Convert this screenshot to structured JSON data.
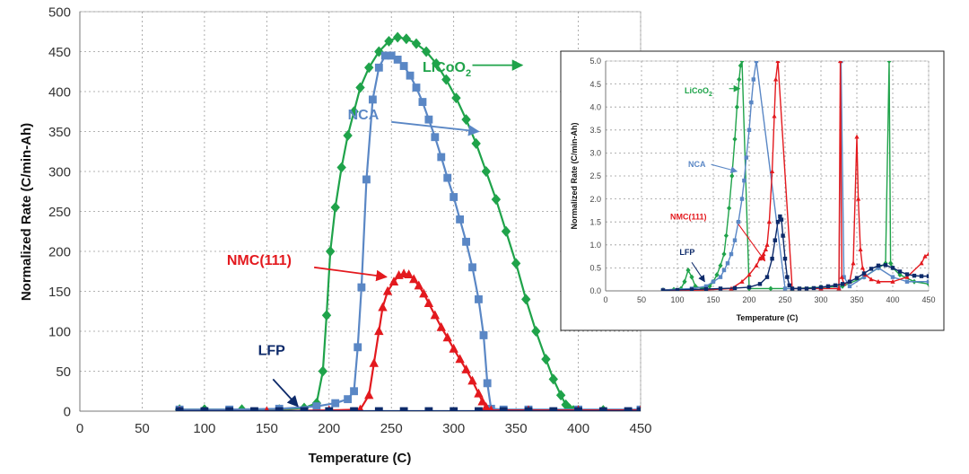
{
  "chart_data": [
    {
      "id": "main",
      "type": "scatter",
      "title": "",
      "xlabel": "Temperature (C)",
      "ylabel": "Normalized Rate (C/min-Ah)",
      "xlim": [
        0,
        450
      ],
      "ylim": [
        0,
        500
      ],
      "xticks": [
        "0",
        "50",
        "100",
        "150",
        "200",
        "250",
        "300",
        "350",
        "400",
        "450"
      ],
      "yticks": [
        "0",
        "50",
        "100",
        "150",
        "200",
        "250",
        "300",
        "350",
        "400",
        "450",
        "500"
      ],
      "grid": true,
      "series": [
        {
          "name": "LiCoO2",
          "label_base": "LiCoO",
          "label_sub": "2",
          "color": "#1fa34a",
          "marker": "diamond",
          "x": [
            80,
            100,
            130,
            160,
            180,
            190,
            195,
            198,
            201,
            205,
            210,
            215,
            220,
            225,
            232,
            240,
            248,
            255,
            262,
            270,
            278,
            286,
            294,
            302,
            310,
            318,
            326,
            334,
            342,
            350,
            358,
            366,
            374,
            380,
            386,
            390,
            393,
            396,
            400,
            420,
            450
          ],
          "y": [
            2,
            2,
            2,
            2,
            4,
            10,
            50,
            120,
            200,
            255,
            305,
            345,
            375,
            405,
            430,
            450,
            463,
            468,
            466,
            460,
            450,
            435,
            415,
            392,
            365,
            335,
            300,
            265,
            225,
            185,
            140,
            100,
            65,
            40,
            20,
            8,
            3,
            1,
            1,
            1,
            1
          ]
        },
        {
          "name": "NCA",
          "color": "#5a87c5",
          "marker": "square",
          "x": [
            80,
            120,
            160,
            190,
            205,
            215,
            220,
            223,
            226,
            230,
            235,
            240,
            245,
            250,
            255,
            260,
            265,
            270,
            275,
            280,
            285,
            290,
            295,
            300,
            305,
            310,
            315,
            320,
            324,
            327,
            330,
            340,
            360,
            400,
            450
          ],
          "y": [
            2,
            2,
            3,
            6,
            10,
            15,
            25,
            80,
            155,
            290,
            390,
            430,
            445,
            445,
            440,
            432,
            420,
            405,
            387,
            365,
            343,
            318,
            292,
            268,
            240,
            212,
            180,
            140,
            95,
            35,
            3,
            2,
            2,
            2,
            2
          ]
        },
        {
          "name": "NMC(111)",
          "color": "#e3191e",
          "marker": "triangle",
          "x": [
            80,
            150,
            200,
            225,
            232,
            236,
            240,
            243,
            247,
            252,
            256,
            260,
            264,
            268,
            272,
            276,
            280,
            285,
            290,
            295,
            300,
            305,
            310,
            315,
            320,
            323,
            326,
            330,
            360,
            400,
            450
          ],
          "y": [
            0,
            0,
            1,
            2,
            20,
            60,
            100,
            130,
            150,
            162,
            170,
            172,
            171,
            165,
            157,
            147,
            135,
            120,
            105,
            92,
            78,
            65,
            52,
            38,
            22,
            12,
            5,
            1,
            1,
            1,
            1
          ]
        },
        {
          "name": "LFP",
          "color": "#0d2a6a",
          "marker": "square",
          "x": [
            80,
            100,
            120,
            140,
            160,
            180,
            200,
            220,
            240,
            260,
            280,
            300,
            320,
            340,
            360,
            380,
            400,
            420,
            440,
            450
          ],
          "y": [
            0,
            0,
            0,
            0,
            0,
            0,
            0,
            0,
            0,
            0,
            0,
            0,
            0,
            0,
            0,
            0,
            0,
            0,
            0,
            0
          ]
        }
      ],
      "annotations": [
        {
          "series": "LiCoO2",
          "text_base": "LiCoO",
          "text_sub": "2",
          "color": "#1fa34a",
          "tx": 275,
          "ty": 425,
          "ax": 315,
          "ay": 433,
          "bx": 355,
          "by": 433
        },
        {
          "series": "NCA",
          "text": "NCA",
          "color": "#5a87c5",
          "tx": 215,
          "ty": 365,
          "ax": 250,
          "ay": 362,
          "bx": 320,
          "by": 350
        },
        {
          "series": "NMC(111)",
          "text": "NMC(111)",
          "color": "#e3191e",
          "tx": 118,
          "ty": 183,
          "ax": 188,
          "ay": 180,
          "bx": 246,
          "by": 168
        },
        {
          "series": "LFP",
          "text": "LFP",
          "color": "#0d2a6a",
          "tx": 143,
          "ty": 70,
          "ax": 155,
          "ay": 40,
          "bx": 175,
          "by": 6
        }
      ]
    },
    {
      "id": "inset",
      "type": "scatter",
      "title": "",
      "xlabel": "Temperature (C)",
      "ylabel": "Normalized Rate (C/min-Ah)",
      "xlim": [
        0,
        450
      ],
      "ylim": [
        0,
        5
      ],
      "xticks": [
        "0",
        "50",
        "100",
        "150",
        "200",
        "250",
        "300",
        "350",
        "400",
        "450"
      ],
      "yticks": [
        "0.0",
        "0.5",
        "1.0",
        "1.5",
        "2.0",
        "2.5",
        "3.0",
        "3.5",
        "4.0",
        "4.5",
        "5.0"
      ],
      "grid": true,
      "series": [
        {
          "name": "LiCoO2",
          "label_base": "LiCoO",
          "label_sub": "2",
          "color": "#1fa34a",
          "marker": "diamond",
          "x": [
            80,
            95,
            105,
            110,
            115,
            120,
            125,
            135,
            145,
            150,
            155,
            160,
            165,
            168,
            172,
            176,
            180,
            183,
            186,
            188,
            190,
            200,
            230,
            260,
            300,
            330,
            360,
            380,
            390,
            395,
            397,
            400,
            410,
            430,
            450
          ],
          "y": [
            0.02,
            0.03,
            0.05,
            0.2,
            0.45,
            0.3,
            0.1,
            0.05,
            0.1,
            0.2,
            0.35,
            0.55,
            0.8,
            1.2,
            1.8,
            2.5,
            3.3,
            4.0,
            4.6,
            4.9,
            5.0,
            0.05,
            0.05,
            0.05,
            0.08,
            0.1,
            0.3,
            0.5,
            0.6,
            5.0,
            0.6,
            0.5,
            0.35,
            0.2,
            0.15
          ]
        },
        {
          "name": "NCA",
          "color": "#5a87c5",
          "marker": "square",
          "x": [
            80,
            120,
            140,
            150,
            160,
            165,
            170,
            175,
            180,
            185,
            190,
            193,
            196,
            200,
            203,
            206,
            210,
            250,
            300,
            325,
            328,
            332,
            340,
            360,
            380,
            400,
            420,
            450
          ],
          "y": [
            0.02,
            0.05,
            0.1,
            0.2,
            0.3,
            0.45,
            0.6,
            0.8,
            1.1,
            1.5,
            2.0,
            2.4,
            2.9,
            3.5,
            4.1,
            4.6,
            5.0,
            0.05,
            0.05,
            0.05,
            5.0,
            0.3,
            0.1,
            0.3,
            0.5,
            0.3,
            0.2,
            0.2
          ]
        },
        {
          "name": "NMC(111)",
          "color": "#e3191e",
          "marker": "triangle",
          "x": [
            80,
            140,
            175,
            190,
            200,
            210,
            215,
            220,
            223,
            225,
            228,
            232,
            235,
            237,
            240,
            260,
            300,
            325,
            327,
            329,
            332,
            340,
            345,
            350,
            352,
            355,
            358,
            362,
            370,
            380,
            400,
            420,
            440,
            445,
            450
          ],
          "y": [
            0.01,
            0.02,
            0.05,
            0.2,
            0.35,
            0.55,
            0.7,
            0.8,
            0.9,
            1.0,
            1.5,
            2.6,
            3.8,
            4.6,
            5.0,
            0.05,
            0.05,
            0.05,
            5.0,
            0.3,
            0.15,
            0.2,
            0.6,
            3.35,
            2.0,
            0.9,
            0.5,
            0.35,
            0.25,
            0.2,
            0.2,
            0.3,
            0.6,
            0.75,
            0.8
          ]
        },
        {
          "name": "LFP",
          "color": "#0d2a6a",
          "marker": "square",
          "x": [
            80,
            100,
            120,
            140,
            160,
            180,
            200,
            215,
            225,
            232,
            236,
            240,
            243,
            245,
            247,
            250,
            253,
            256,
            260,
            270,
            280,
            290,
            300,
            310,
            320,
            330,
            340,
            350,
            360,
            370,
            380,
            390,
            400,
            410,
            420,
            430,
            440,
            450
          ],
          "y": [
            0.01,
            0.02,
            0.03,
            0.04,
            0.05,
            0.06,
            0.08,
            0.15,
            0.3,
            0.7,
            1.1,
            1.5,
            1.62,
            1.55,
            1.2,
            0.7,
            0.3,
            0.12,
            0.05,
            0.05,
            0.05,
            0.06,
            0.08,
            0.1,
            0.12,
            0.15,
            0.2,
            0.28,
            0.38,
            0.48,
            0.55,
            0.56,
            0.5,
            0.42,
            0.36,
            0.33,
            0.32,
            0.32
          ]
        }
      ],
      "annotations": [
        {
          "series": "LiCoO2",
          "text_base": "LiCoO",
          "text_sub": "2",
          "color": "#1fa34a",
          "tx": 110,
          "ty": 4.3,
          "ax": 172,
          "ay": 4.4,
          "bx": 187,
          "by": 4.4
        },
        {
          "series": "NCA",
          "text": "NCA",
          "color": "#5a87c5",
          "tx": 115,
          "ty": 2.7,
          "ax": 147,
          "ay": 2.75,
          "bx": 183,
          "by": 2.6
        },
        {
          "series": "NMC(111)",
          "text": "NMC(111)",
          "color": "#e3191e",
          "tx": 90,
          "ty": 1.55,
          "ax": 185,
          "ay": 1.45,
          "bx": 222,
          "by": 0.65
        },
        {
          "series": "LFP",
          "text": "LFP",
          "color": "#0d2a6a",
          "tx": 103,
          "ty": 0.78,
          "ax": 120,
          "ay": 0.62,
          "bx": 138,
          "by": 0.2
        }
      ]
    }
  ]
}
